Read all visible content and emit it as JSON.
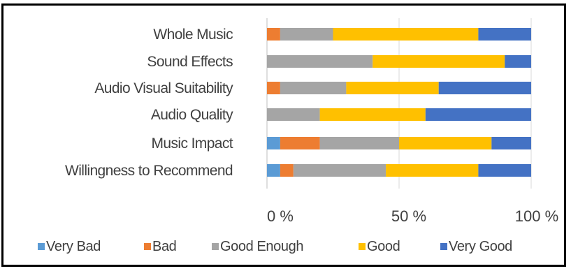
{
  "chart_data": {
    "type": "bar",
    "orientation": "horizontal",
    "stacked": true,
    "normalized_percent": true,
    "categories": [
      "Whole Music",
      "Sound Effects",
      "Audio Visual Suitability",
      "Audio Quality",
      "Music Impact",
      "Willingness to Recommend"
    ],
    "series": [
      {
        "name": "Very Bad",
        "color": "#5B9BD5",
        "values": [
          0,
          0,
          0,
          0,
          5,
          5
        ]
      },
      {
        "name": "Bad",
        "color": "#ED7D31",
        "values": [
          5,
          0,
          5,
          0,
          15,
          5
        ]
      },
      {
        "name": "Good Enough",
        "color": "#A5A5A5",
        "values": [
          20,
          40,
          25,
          20,
          30,
          35
        ]
      },
      {
        "name": "Good",
        "color": "#FFC000",
        "values": [
          55,
          50,
          35,
          40,
          35,
          35
        ]
      },
      {
        "name": "Very Good",
        "color": "#4472C4",
        "values": [
          20,
          10,
          35,
          40,
          15,
          20
        ]
      }
    ],
    "xlim": [
      0,
      100
    ],
    "xticks": [
      "0 %",
      "50 %",
      "100 %"
    ],
    "grid": true,
    "legend_position": "bottom"
  }
}
